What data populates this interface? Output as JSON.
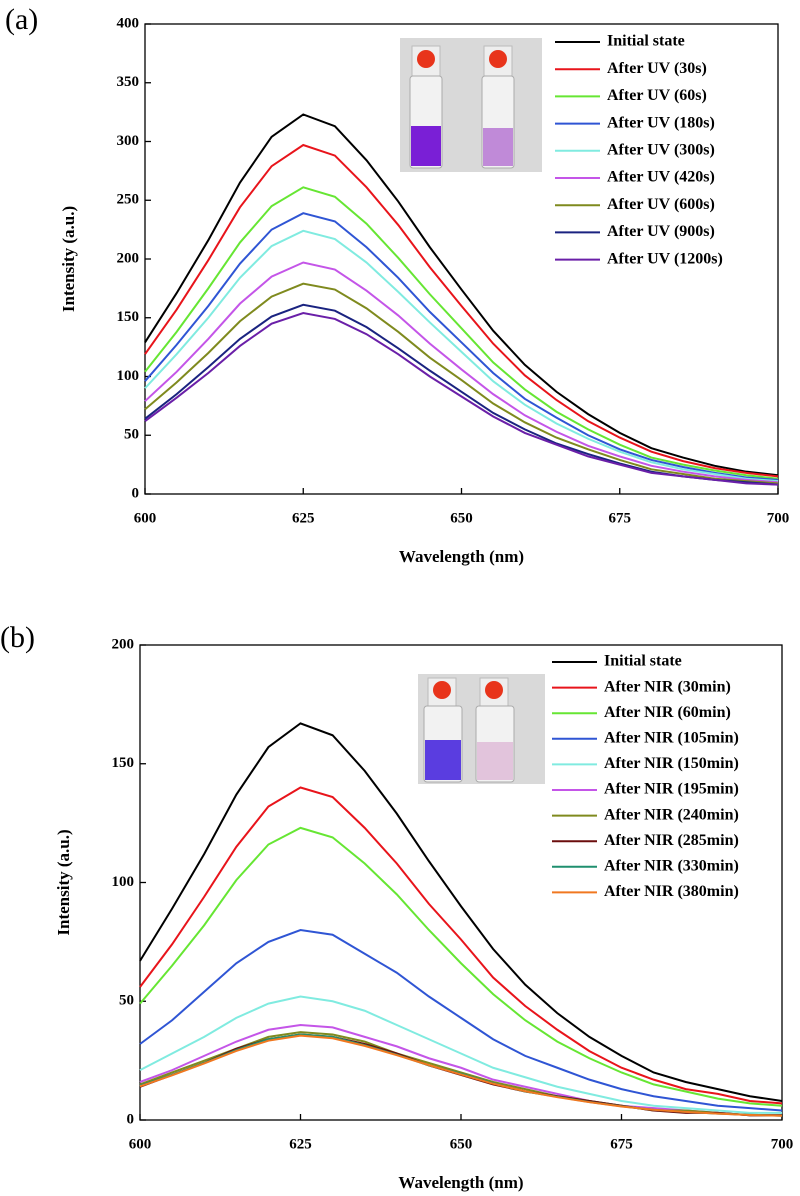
{
  "chart_data": [
    {
      "type": "line",
      "panel_label": "(a)",
      "x_label": "Wavelength (nm)",
      "y_label": "Intensity (a.u.)",
      "xlim": [
        600,
        700
      ],
      "xticks": [
        600,
        625,
        650,
        675,
        700
      ],
      "ylim": [
        0,
        400
      ],
      "yticks": [
        0,
        50,
        100,
        150,
        200,
        250,
        300,
        350,
        400
      ],
      "legend": "upper right",
      "x": [
        600,
        605,
        610,
        615,
        620,
        625,
        630,
        635,
        640,
        645,
        650,
        655,
        660,
        665,
        670,
        675,
        680,
        685,
        690,
        695,
        700
      ],
      "series": [
        {
          "name": "Initial state",
          "color": "#000000",
          "values": [
            129,
            171,
            216,
            265,
            304,
            323,
            313,
            284,
            249,
            210,
            174,
            139,
            110,
            87,
            68,
            52,
            39,
            31,
            24,
            19,
            16
          ]
        },
        {
          "name": "After UV (30s)",
          "color": "#e8141b",
          "values": [
            119,
            157,
            199,
            244,
            279,
            297,
            288,
            261,
            229,
            193,
            160,
            128,
            101,
            80,
            62,
            48,
            36,
            28,
            22,
            18,
            15
          ]
        },
        {
          "name": "After UV (60s)",
          "color": "#66e633",
          "values": [
            104,
            138,
            175,
            214,
            245,
            261,
            253,
            230,
            201,
            170,
            141,
            112,
            89,
            70,
            55,
            42,
            31,
            25,
            20,
            16,
            13
          ]
        },
        {
          "name": "After UV (180s)",
          "color": "#2f55d4",
          "values": [
            96,
            127,
            160,
            196,
            225,
            239,
            232,
            210,
            184,
            155,
            129,
            103,
            81,
            65,
            50,
            38,
            29,
            23,
            18,
            14,
            12
          ]
        },
        {
          "name": "After UV (300s)",
          "color": "#80ebe0",
          "values": [
            90,
            119,
            150,
            184,
            211,
            224,
            217,
            197,
            172,
            146,
            121,
            96,
            76,
            60,
            47,
            36,
            27,
            21,
            17,
            13,
            11
          ]
        },
        {
          "name": "After UV (420s)",
          "color": "#c455e8",
          "values": [
            79,
            104,
            132,
            162,
            185,
            197,
            191,
            173,
            152,
            128,
            106,
            85,
            67,
            53,
            41,
            32,
            24,
            19,
            15,
            12,
            10
          ]
        },
        {
          "name": "After UV (600s)",
          "color": "#7f8a1e",
          "values": [
            72,
            95,
            120,
            147,
            168,
            179,
            174,
            158,
            138,
            116,
            97,
            77,
            61,
            48,
            38,
            29,
            21,
            17,
            13,
            11,
            9
          ]
        },
        {
          "name": "After UV (900s)",
          "color": "#1a2380",
          "values": [
            64,
            85,
            108,
            132,
            151,
            161,
            156,
            142,
            124,
            105,
            87,
            69,
            55,
            43,
            34,
            26,
            19,
            15,
            12,
            10,
            8
          ]
        },
        {
          "name": "After UV (1200s)",
          "color": "#6a1fa8",
          "values": [
            62,
            82,
            103,
            126,
            145,
            154,
            149,
            136,
            119,
            100,
            83,
            66,
            52,
            42,
            32,
            25,
            18,
            15,
            12,
            9,
            8
          ]
        }
      ]
    },
    {
      "type": "line",
      "panel_label": "(b)",
      "x_label": "Wavelength (nm)",
      "y_label": "Intensity (a.u.)",
      "xlim": [
        600,
        700
      ],
      "xticks": [
        600,
        625,
        650,
        675,
        700
      ],
      "ylim": [
        0,
        200
      ],
      "yticks": [
        0,
        50,
        100,
        150,
        200
      ],
      "legend": "upper right",
      "x": [
        600,
        605,
        610,
        615,
        620,
        625,
        630,
        635,
        640,
        645,
        650,
        655,
        660,
        665,
        670,
        675,
        680,
        685,
        690,
        695,
        700
      ],
      "series": [
        {
          "name": "Initial state",
          "color": "#000000",
          "values": [
            67,
            89,
            112,
            137,
            157,
            167,
            162,
            147,
            129,
            109,
            90,
            72,
            57,
            45,
            35,
            27,
            20,
            16,
            13,
            10,
            8
          ]
        },
        {
          "name": "After NIR (30min)",
          "color": "#e8141b",
          "values": [
            56,
            74,
            94,
            115,
            132,
            140,
            136,
            123,
            108,
            91,
            76,
            60,
            48,
            38,
            29,
            22,
            17,
            13,
            11,
            8,
            7
          ]
        },
        {
          "name": "After NIR (60min)",
          "color": "#66e633",
          "values": [
            49,
            65,
            82,
            101,
            116,
            123,
            119,
            108,
            95,
            80,
            66,
            53,
            42,
            33,
            26,
            20,
            15,
            12,
            9,
            7,
            6
          ]
        },
        {
          "name": "After NIR (105min)",
          "color": "#2f55d4",
          "values": [
            32,
            42,
            54,
            66,
            75,
            80,
            78,
            70,
            62,
            52,
            43,
            34,
            27,
            22,
            17,
            13,
            10,
            8,
            6,
            5,
            4
          ]
        },
        {
          "name": "After NIR (150min)",
          "color": "#80ebe0",
          "values": [
            21,
            28,
            35,
            43,
            49,
            52,
            50,
            46,
            40,
            34,
            28,
            22,
            18,
            14,
            11,
            8,
            6,
            5,
            4,
            3,
            3
          ]
        },
        {
          "name": "After NIR (195min)",
          "color": "#c455e8",
          "values": [
            16,
            21,
            27,
            33,
            38,
            40,
            39,
            35,
            31,
            26,
            22,
            17,
            14,
            11,
            8,
            6,
            5,
            4,
            3,
            2,
            2
          ]
        },
        {
          "name": "After NIR (240min)",
          "color": "#7f8a1e",
          "values": [
            15,
            20,
            25,
            30,
            35,
            37,
            36,
            33,
            28,
            24,
            20,
            16,
            13,
            10,
            8,
            6,
            4,
            4,
            3,
            2,
            2
          ]
        },
        {
          "name": "After NIR (285min)",
          "color": "#6b0d0d",
          "values": [
            14,
            19,
            24,
            30,
            34,
            36,
            35,
            32,
            28,
            23,
            19,
            15,
            12,
            10,
            8,
            6,
            4,
            3,
            3,
            2,
            2
          ]
        },
        {
          "name": "After NIR (330min)",
          "color": "#1f8f6f",
          "values": [
            14.5,
            19,
            24,
            29.5,
            34,
            36,
            35,
            31.5,
            27.5,
            23,
            19.5,
            15.5,
            12,
            9.8,
            7.6,
            5.8,
            4.3,
            3.4,
            2.7,
            2.2,
            1.8
          ]
        },
        {
          "name": "After NIR (380min)",
          "color": "#f07820",
          "values": [
            14.2,
            18.8,
            23.8,
            29.1,
            33.4,
            35.5,
            34.4,
            31.2,
            27.3,
            23.1,
            19.2,
            15.3,
            12.1,
            9.6,
            7.5,
            5.7,
            4.3,
            3.4,
            2.7,
            2.1,
            1.8
          ]
        }
      ]
    }
  ]
}
